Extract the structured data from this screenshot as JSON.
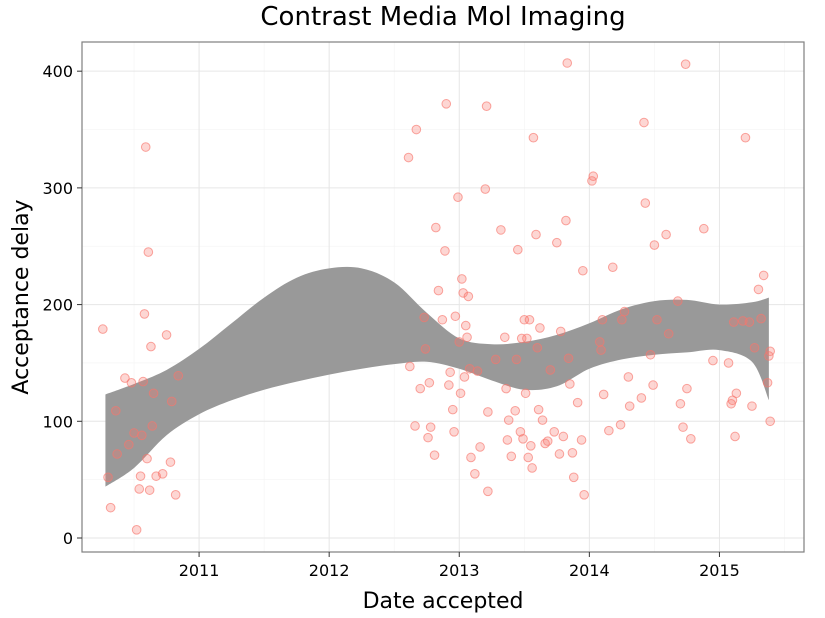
{
  "chart_data": {
    "type": "scatter",
    "title": "Contrast Media Mol Imaging",
    "xlabel": "Date accepted",
    "ylabel": "Acceptance delay",
    "xlim": [
      2010.1,
      2015.65
    ],
    "ylim": [
      -12,
      425
    ],
    "x_ticks": [
      2011,
      2012,
      2013,
      2014,
      2015
    ],
    "x_tick_labels": [
      "2011",
      "2012",
      "2013",
      "2014",
      "2015"
    ],
    "y_ticks": [
      0,
      100,
      200,
      300,
      400
    ],
    "y_tick_labels": [
      "0",
      "100",
      "200",
      "300",
      "400"
    ],
    "grid": true,
    "point_color": "#f8766d",
    "band_color": "#999999",
    "points": [
      [
        2010.26,
        179
      ],
      [
        2010.3,
        52
      ],
      [
        2010.32,
        26
      ],
      [
        2010.36,
        109
      ],
      [
        2010.37,
        72
      ],
      [
        2010.43,
        137
      ],
      [
        2010.46,
        80
      ],
      [
        2010.48,
        133
      ],
      [
        2010.5,
        90
      ],
      [
        2010.52,
        7
      ],
      [
        2010.54,
        42
      ],
      [
        2010.55,
        53
      ],
      [
        2010.56,
        88
      ],
      [
        2010.57,
        134
      ],
      [
        2010.58,
        192
      ],
      [
        2010.59,
        335
      ],
      [
        2010.6,
        68
      ],
      [
        2010.61,
        245
      ],
      [
        2010.62,
        41
      ],
      [
        2010.63,
        164
      ],
      [
        2010.64,
        96
      ],
      [
        2010.65,
        124
      ],
      [
        2010.67,
        53
      ],
      [
        2010.72,
        55
      ],
      [
        2010.75,
        174
      ],
      [
        2010.78,
        65
      ],
      [
        2010.79,
        117
      ],
      [
        2010.82,
        37
      ],
      [
        2010.84,
        139
      ],
      [
        2012.61,
        326
      ],
      [
        2012.62,
        147
      ],
      [
        2012.66,
        96
      ],
      [
        2012.67,
        350
      ],
      [
        2012.7,
        128
      ],
      [
        2012.73,
        189
      ],
      [
        2012.74,
        162
      ],
      [
        2012.76,
        86
      ],
      [
        2012.77,
        133
      ],
      [
        2012.78,
        95
      ],
      [
        2012.81,
        71
      ],
      [
        2012.82,
        266
      ],
      [
        2012.84,
        212
      ],
      [
        2012.87,
        187
      ],
      [
        2012.89,
        246
      ],
      [
        2012.9,
        372
      ],
      [
        2012.92,
        131
      ],
      [
        2012.93,
        142
      ],
      [
        2012.95,
        110
      ],
      [
        2012.96,
        91
      ],
      [
        2012.97,
        190
      ],
      [
        2012.99,
        292
      ],
      [
        2013.0,
        168
      ],
      [
        2013.01,
        124
      ],
      [
        2013.02,
        222
      ],
      [
        2013.03,
        210
      ],
      [
        2013.04,
        138
      ],
      [
        2013.05,
        182
      ],
      [
        2013.06,
        172
      ],
      [
        2013.07,
        207
      ],
      [
        2013.08,
        145
      ],
      [
        2013.09,
        69
      ],
      [
        2013.12,
        55
      ],
      [
        2013.14,
        143
      ],
      [
        2013.16,
        78
      ],
      [
        2013.2,
        299
      ],
      [
        2013.21,
        370
      ],
      [
        2013.22,
        40
      ],
      [
        2013.22,
        108
      ],
      [
        2013.28,
        153
      ],
      [
        2013.32,
        264
      ],
      [
        2013.35,
        172
      ],
      [
        2013.36,
        128
      ],
      [
        2013.37,
        84
      ],
      [
        2013.38,
        101
      ],
      [
        2013.4,
        70
      ],
      [
        2013.43,
        109
      ],
      [
        2013.44,
        153
      ],
      [
        2013.45,
        247
      ],
      [
        2013.47,
        91
      ],
      [
        2013.48,
        171
      ],
      [
        2013.49,
        85
      ],
      [
        2013.5,
        187
      ],
      [
        2013.51,
        124
      ],
      [
        2013.52,
        171
      ],
      [
        2013.53,
        69
      ],
      [
        2013.54,
        187
      ],
      [
        2013.55,
        79
      ],
      [
        2013.56,
        60
      ],
      [
        2013.57,
        343
      ],
      [
        2013.59,
        260
      ],
      [
        2013.6,
        163
      ],
      [
        2013.61,
        110
      ],
      [
        2013.62,
        180
      ],
      [
        2013.64,
        101
      ],
      [
        2013.66,
        81
      ],
      [
        2013.68,
        83
      ],
      [
        2013.7,
        144
      ],
      [
        2013.73,
        91
      ],
      [
        2013.75,
        253
      ],
      [
        2013.77,
        72
      ],
      [
        2013.78,
        177
      ],
      [
        2013.8,
        87
      ],
      [
        2013.82,
        272
      ],
      [
        2013.83,
        407
      ],
      [
        2013.84,
        154
      ],
      [
        2013.85,
        132
      ],
      [
        2013.87,
        73
      ],
      [
        2013.88,
        52
      ],
      [
        2013.91,
        116
      ],
      [
        2013.94,
        84
      ],
      [
        2013.95,
        229
      ],
      [
        2013.96,
        37
      ],
      [
        2014.02,
        306
      ],
      [
        2014.03,
        310
      ],
      [
        2014.08,
        168
      ],
      [
        2014.09,
        161
      ],
      [
        2014.1,
        187
      ],
      [
        2014.11,
        123
      ],
      [
        2014.15,
        92
      ],
      [
        2014.18,
        232
      ],
      [
        2014.24,
        97
      ],
      [
        2014.25,
        187
      ],
      [
        2014.27,
        194
      ],
      [
        2014.3,
        138
      ],
      [
        2014.31,
        113
      ],
      [
        2014.4,
        120
      ],
      [
        2014.42,
        356
      ],
      [
        2014.43,
        287
      ],
      [
        2014.47,
        157
      ],
      [
        2014.49,
        131
      ],
      [
        2014.5,
        251
      ],
      [
        2014.52,
        187
      ],
      [
        2014.59,
        260
      ],
      [
        2014.61,
        175
      ],
      [
        2014.68,
        203
      ],
      [
        2014.7,
        115
      ],
      [
        2014.72,
        95
      ],
      [
        2014.74,
        406
      ],
      [
        2014.75,
        128
      ],
      [
        2014.78,
        85
      ],
      [
        2014.88,
        265
      ],
      [
        2014.95,
        152
      ],
      [
        2015.07,
        150
      ],
      [
        2015.09,
        115
      ],
      [
        2015.1,
        118
      ],
      [
        2015.11,
        185
      ],
      [
        2015.12,
        87
      ],
      [
        2015.13,
        124
      ],
      [
        2015.18,
        186
      ],
      [
        2015.2,
        343
      ],
      [
        2015.23,
        185
      ],
      [
        2015.25,
        113
      ],
      [
        2015.27,
        163
      ],
      [
        2015.3,
        213
      ],
      [
        2015.32,
        188
      ],
      [
        2015.34,
        225
      ],
      [
        2015.37,
        133
      ],
      [
        2015.38,
        156
      ],
      [
        2015.39,
        100
      ],
      [
        2015.39,
        160
      ]
    ],
    "smooth_band": {
      "x": [
        2010.28,
        2010.5,
        2010.75,
        2011.0,
        2011.25,
        2011.5,
        2011.75,
        2012.0,
        2012.25,
        2012.5,
        2012.75,
        2013.0,
        2013.25,
        2013.5,
        2013.75,
        2014.0,
        2014.25,
        2014.5,
        2014.75,
        2015.0,
        2015.25,
        2015.38
      ],
      "upper": [
        123,
        132,
        144,
        162,
        184,
        206,
        223,
        231,
        231,
        219,
        193,
        171,
        166,
        168,
        174,
        184,
        196,
        203,
        204,
        200,
        202,
        206
      ],
      "lower": [
        44,
        60,
        88,
        106,
        118,
        127,
        134,
        140,
        145,
        149,
        151,
        145,
        135,
        127,
        130,
        145,
        153,
        157,
        159,
        161,
        151,
        118
      ]
    }
  }
}
